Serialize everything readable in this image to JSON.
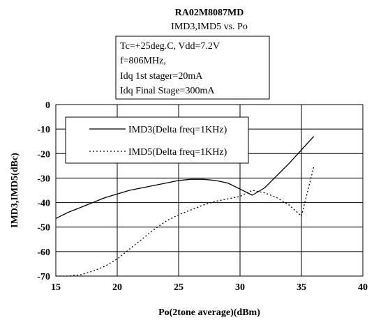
{
  "chart_data": {
    "type": "line",
    "title": "RA02M8087MD",
    "subtitle": "IMD3,IMD5 vs. Po",
    "xlabel": "Po(2tone average)(dBm)",
    "ylabel": "IMD3,IMD5(dBc)",
    "xlim": [
      15,
      40
    ],
    "ylim": [
      -70,
      0
    ],
    "x_ticks": [
      15,
      20,
      25,
      30,
      35,
      40
    ],
    "y_ticks": [
      0,
      -10,
      -20,
      -30,
      -40,
      -50,
      -60,
      -70
    ],
    "grid": true,
    "conditions": [
      "Tc=+25deg.C, Vdd=7.2V",
      "f=806MHz,",
      "Idq 1st stager=20mA",
      "Idq Final Stage=300mA"
    ],
    "legend_position": "top-left",
    "series": [
      {
        "name": "IMD3(Delta freq=1KHz)",
        "style": "solid",
        "color": "#000000",
        "x": [
          15,
          16,
          17,
          18,
          19,
          20,
          21,
          22,
          23,
          24,
          25,
          26,
          27,
          28,
          29,
          30,
          31,
          32,
          33,
          34,
          35,
          36
        ],
        "y": [
          -46.5,
          -44,
          -42,
          -40,
          -38,
          -36.5,
          -35,
          -34,
          -33,
          -32,
          -31,
          -30.5,
          -30.5,
          -31,
          -32,
          -34.5,
          -37,
          -34,
          -29,
          -24,
          -18.5,
          -13
        ]
      },
      {
        "name": "IMD5(Delta freq=1KHz)",
        "style": "dotted",
        "color": "#000000",
        "x": [
          15,
          16,
          17,
          18,
          19,
          20,
          21,
          22,
          23,
          24,
          25,
          26,
          27,
          28,
          29,
          30,
          31,
          32,
          33,
          34,
          35,
          36
        ],
        "y": [
          -70,
          -70,
          -69.5,
          -68,
          -66,
          -63,
          -59,
          -55,
          -51,
          -47.5,
          -45,
          -43,
          -41,
          -39.5,
          -38.5,
          -37.5,
          -35,
          -36,
          -38,
          -41,
          -45.5,
          -25.5
        ]
      }
    ]
  }
}
